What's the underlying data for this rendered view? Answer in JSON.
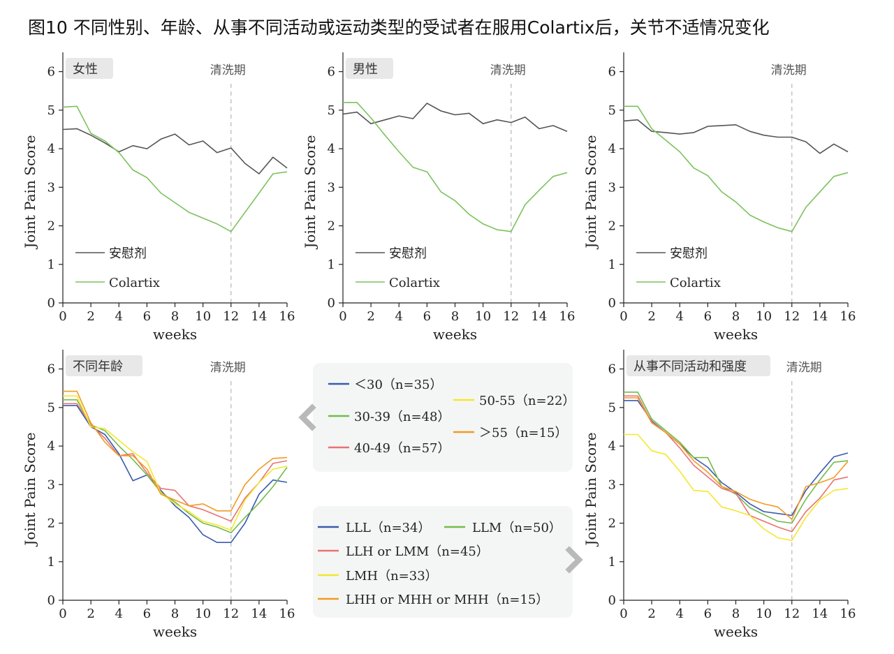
{
  "title": "图10 不同性别、年龄、从事不同活动或运动类型的受试者在服用Colartix后，关节不适情况变化",
  "washout_label": "清洗期",
  "colors": {
    "placebo": "#555555",
    "colartix": "#7cc25d",
    "blue": "#3a5ab0",
    "green": "#72bb4c",
    "red": "#e87373",
    "yellow": "#f3e82e",
    "orange": "#f39a22"
  },
  "age_legend": [
    {
      "name": "＜30（n=35）",
      "color": "#3a5ab0"
    },
    {
      "name": "30-39（n=48）",
      "color": "#72bb4c"
    },
    {
      "name": "40-49（n=57）",
      "color": "#e87373"
    },
    {
      "name": "50-55（n=22）",
      "color": "#f3e82e"
    },
    {
      "name": "＞55（n=15）",
      "color": "#f39a22"
    }
  ],
  "activity_legend": [
    {
      "name": "LLL（n=34）",
      "color": "#3a5ab0"
    },
    {
      "name": "LLM（n=50）",
      "color": "#72bb4c"
    },
    {
      "name": "LLH or LMM（n=45）",
      "color": "#e87373"
    },
    {
      "name": "LMH（n=33）",
      "color": "#f3e82e"
    },
    {
      "name": "LHH or MHH or MHH（n=15）",
      "color": "#f39a22"
    }
  ],
  "chart_data": [
    {
      "type": "line",
      "panel_label": "女性",
      "xlabel": "weeks",
      "ylabel": "Joint Pain Score",
      "xlim": [
        0,
        16
      ],
      "ylim": [
        0,
        6.5
      ],
      "xticks": [
        0,
        2,
        4,
        6,
        8,
        10,
        12,
        14,
        16
      ],
      "yticks": [
        0,
        1,
        2,
        3,
        4,
        5,
        6
      ],
      "washout_x": 12,
      "legend": "lower-left",
      "series": [
        {
          "name": "安慰剂",
          "color": "#555555",
          "x": [
            0,
            1,
            2,
            3,
            4,
            5,
            6,
            7,
            8,
            9,
            10,
            11,
            12,
            13,
            14,
            15,
            16
          ],
          "y": [
            4.5,
            4.52,
            4.35,
            4.15,
            3.92,
            4.08,
            4.0,
            4.25,
            4.38,
            4.1,
            4.2,
            3.9,
            4.02,
            3.62,
            3.35,
            3.78,
            3.5
          ]
        },
        {
          "name": "Colartix",
          "color": "#7cc25d",
          "x": [
            0,
            1,
            2,
            3,
            4,
            5,
            6,
            7,
            8,
            9,
            10,
            11,
            12,
            13,
            14,
            15,
            16
          ],
          "y": [
            5.08,
            5.1,
            4.4,
            4.2,
            3.9,
            3.45,
            3.25,
            2.85,
            2.6,
            2.35,
            2.2,
            2.05,
            1.85,
            2.35,
            2.85,
            3.35,
            3.4
          ]
        }
      ]
    },
    {
      "type": "line",
      "panel_label": "男性",
      "xlabel": "weeks",
      "ylabel": "Joint Pain Score",
      "xlim": [
        0,
        16
      ],
      "ylim": [
        0,
        6.5
      ],
      "xticks": [
        0,
        2,
        4,
        6,
        8,
        10,
        12,
        14,
        16
      ],
      "yticks": [
        0,
        1,
        2,
        3,
        4,
        5,
        6
      ],
      "washout_x": 12,
      "legend": "lower-left",
      "series": [
        {
          "name": "安慰剂",
          "color": "#555555",
          "x": [
            0,
            1,
            2,
            3,
            4,
            5,
            6,
            7,
            8,
            9,
            10,
            11,
            12,
            13,
            14,
            15,
            16
          ],
          "y": [
            4.9,
            4.95,
            4.65,
            4.75,
            4.85,
            4.78,
            5.18,
            4.98,
            4.88,
            4.92,
            4.65,
            4.75,
            4.68,
            4.82,
            4.52,
            4.6,
            4.45
          ]
        },
        {
          "name": "Colartix",
          "color": "#7cc25d",
          "x": [
            0,
            1,
            2,
            3,
            4,
            5,
            6,
            7,
            8,
            9,
            10,
            11,
            12,
            13,
            14,
            15,
            16
          ],
          "y": [
            5.2,
            5.2,
            4.8,
            4.35,
            3.92,
            3.52,
            3.4,
            2.88,
            2.65,
            2.3,
            2.05,
            1.9,
            1.85,
            2.55,
            2.92,
            3.28,
            3.38
          ]
        }
      ]
    },
    {
      "type": "line",
      "panel_label": "",
      "xlabel": "weeks",
      "ylabel": "Joint Pain Score",
      "xlim": [
        0,
        16
      ],
      "ylim": [
        0,
        6.5
      ],
      "xticks": [
        0,
        2,
        4,
        6,
        8,
        10,
        12,
        14,
        16
      ],
      "yticks": [
        0,
        1,
        2,
        3,
        4,
        5,
        6
      ],
      "washout_x": 12,
      "legend": "lower-left",
      "series": [
        {
          "name": "安慰剂",
          "color": "#555555",
          "x": [
            0,
            1,
            2,
            3,
            4,
            5,
            6,
            7,
            8,
            9,
            10,
            11,
            12,
            13,
            14,
            15,
            16
          ],
          "y": [
            4.72,
            4.75,
            4.45,
            4.42,
            4.38,
            4.42,
            4.58,
            4.6,
            4.62,
            4.45,
            4.35,
            4.3,
            4.3,
            4.18,
            3.88,
            4.12,
            3.92
          ]
        },
        {
          "name": "Colartix",
          "color": "#7cc25d",
          "x": [
            0,
            1,
            2,
            3,
            4,
            5,
            6,
            7,
            8,
            9,
            10,
            11,
            12,
            13,
            14,
            15,
            16
          ],
          "y": [
            5.1,
            5.1,
            4.52,
            4.22,
            3.92,
            3.5,
            3.3,
            2.88,
            2.62,
            2.28,
            2.1,
            1.95,
            1.85,
            2.48,
            2.88,
            3.28,
            3.38
          ]
        }
      ]
    },
    {
      "type": "line",
      "panel_label": "不同年龄",
      "xlabel": "weeks",
      "ylabel": "Joint Pain Score",
      "xlim": [
        0,
        16
      ],
      "ylim": [
        0,
        6.5
      ],
      "xticks": [
        0,
        2,
        4,
        6,
        8,
        10,
        12,
        14,
        16
      ],
      "yticks": [
        0,
        1,
        2,
        3,
        4,
        5,
        6
      ],
      "washout_x": 12,
      "series": [
        {
          "name": "＜30（n=35）",
          "color": "#3a5ab0",
          "x": [
            0,
            1,
            2,
            3,
            4,
            5,
            6,
            7,
            8,
            9,
            10,
            11,
            12,
            13,
            14,
            15,
            16
          ],
          "y": [
            5.05,
            5.05,
            4.5,
            4.3,
            3.8,
            3.1,
            3.25,
            2.85,
            2.45,
            2.15,
            1.7,
            1.5,
            1.5,
            2.0,
            2.75,
            3.12,
            3.06
          ]
        },
        {
          "name": "30-39（n=48）",
          "color": "#72bb4c",
          "x": [
            0,
            1,
            2,
            3,
            4,
            5,
            6,
            7,
            8,
            9,
            10,
            11,
            12,
            13,
            14,
            15,
            16
          ],
          "y": [
            5.2,
            5.2,
            4.55,
            4.4,
            4.0,
            3.65,
            3.25,
            2.8,
            2.55,
            2.25,
            2.0,
            1.9,
            1.75,
            2.15,
            2.52,
            2.95,
            3.45
          ]
        },
        {
          "name": "40-49（n=57）",
          "color": "#e87373",
          "x": [
            0,
            1,
            2,
            3,
            4,
            5,
            6,
            7,
            8,
            9,
            10,
            11,
            12,
            13,
            14,
            15,
            16
          ],
          "y": [
            5.1,
            5.1,
            4.55,
            4.2,
            3.75,
            3.8,
            3.3,
            2.9,
            2.85,
            2.45,
            2.35,
            2.2,
            2.05,
            2.65,
            3.05,
            3.55,
            3.62
          ]
        },
        {
          "name": "50-55（n=22）",
          "color": "#f3e82e",
          "x": [
            0,
            1,
            2,
            3,
            4,
            5,
            6,
            7,
            8,
            9,
            10,
            11,
            12,
            13,
            14,
            15,
            16
          ],
          "y": [
            5.3,
            5.3,
            4.5,
            4.45,
            4.15,
            3.85,
            3.6,
            2.78,
            2.5,
            2.3,
            2.05,
            1.95,
            1.82,
            2.6,
            3.05,
            3.4,
            3.48
          ]
        },
        {
          "name": "＞55（n=15）",
          "color": "#f39a22",
          "x": [
            0,
            1,
            2,
            3,
            4,
            5,
            6,
            7,
            8,
            9,
            10,
            11,
            12,
            13,
            14,
            15,
            16
          ],
          "y": [
            5.42,
            5.42,
            4.6,
            4.1,
            3.75,
            3.75,
            3.4,
            2.75,
            2.6,
            2.45,
            2.5,
            2.32,
            2.32,
            3.0,
            3.4,
            3.68,
            3.7
          ]
        }
      ]
    },
    {
      "type": "line",
      "panel_label": "从事不同活动和强度",
      "xlabel": "weeks",
      "ylabel": "Joint Pain Score",
      "xlim": [
        0,
        16
      ],
      "ylim": [
        0,
        6.5
      ],
      "xticks": [
        0,
        2,
        4,
        6,
        8,
        10,
        12,
        14,
        16
      ],
      "yticks": [
        0,
        1,
        2,
        3,
        4,
        5,
        6
      ],
      "washout_x": 12,
      "series": [
        {
          "name": "LLL（n=34）",
          "color": "#3a5ab0",
          "x": [
            0,
            1,
            2,
            3,
            4,
            5,
            6,
            7,
            8,
            9,
            10,
            11,
            12,
            13,
            14,
            15,
            16
          ],
          "y": [
            5.18,
            5.18,
            4.65,
            4.35,
            4.05,
            3.7,
            3.45,
            3.05,
            2.8,
            2.5,
            2.3,
            2.25,
            2.2,
            2.85,
            3.3,
            3.72,
            3.82
          ]
        },
        {
          "name": "LLM（n=50）",
          "color": "#72bb4c",
          "x": [
            0,
            1,
            2,
            3,
            4,
            5,
            6,
            7,
            8,
            9,
            10,
            11,
            12,
            13,
            14,
            15,
            16
          ],
          "y": [
            5.4,
            5.4,
            4.7,
            4.4,
            4.1,
            3.7,
            3.7,
            2.95,
            2.75,
            2.4,
            2.22,
            2.05,
            2.0,
            2.62,
            3.12,
            3.58,
            3.62
          ]
        },
        {
          "name": "LLH or LMM（n=45）",
          "color": "#e87373",
          "x": [
            0,
            1,
            2,
            3,
            4,
            5,
            6,
            7,
            8,
            9,
            10,
            11,
            12,
            13,
            14,
            15,
            16
          ],
          "y": [
            5.3,
            5.3,
            4.62,
            4.35,
            3.95,
            3.5,
            3.2,
            2.9,
            2.78,
            2.2,
            2.05,
            1.9,
            1.78,
            2.3,
            2.65,
            3.12,
            3.2
          ]
        },
        {
          "name": "LMH（n=33）",
          "color": "#f3e82e",
          "x": [
            0,
            1,
            2,
            3,
            4,
            5,
            6,
            7,
            8,
            9,
            10,
            11,
            12,
            13,
            14,
            15,
            16
          ],
          "y": [
            4.3,
            4.3,
            3.88,
            3.78,
            3.35,
            2.85,
            2.82,
            2.42,
            2.32,
            2.2,
            1.85,
            1.62,
            1.55,
            2.15,
            2.6,
            2.85,
            2.9
          ]
        },
        {
          "name": "LHH or MHH or MHH（n=15）",
          "color": "#f39a22",
          "x": [
            0,
            1,
            2,
            3,
            4,
            5,
            6,
            7,
            8,
            9,
            10,
            11,
            12,
            13,
            14,
            15,
            16
          ],
          "y": [
            5.25,
            5.25,
            4.6,
            4.35,
            4.05,
            3.62,
            3.32,
            2.95,
            2.82,
            2.62,
            2.5,
            2.42,
            2.1,
            2.95,
            3.05,
            3.18,
            3.6
          ]
        }
      ]
    }
  ]
}
